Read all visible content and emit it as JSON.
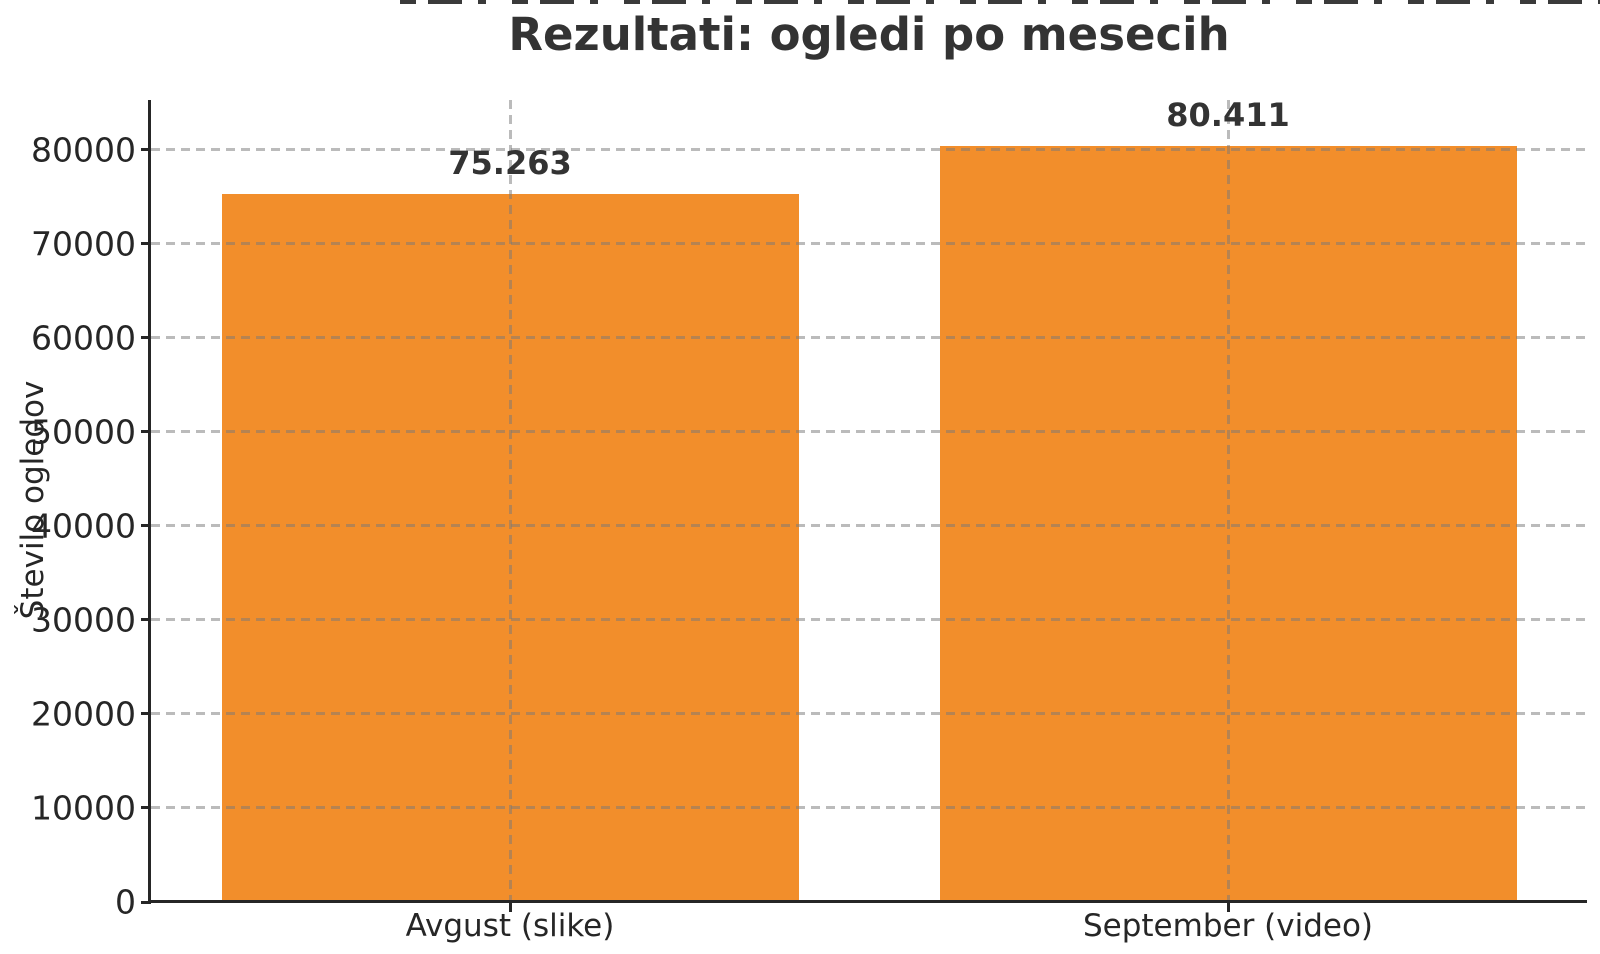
{
  "figure": {
    "title": "Rezultati: ogledi po mesecih"
  },
  "chart_data": {
    "type": "bar",
    "title": "Rezultati: ogledi po mesecih",
    "xlabel": "",
    "ylabel": "Število ogledov",
    "categories": [
      "Avgust (slike)",
      "September (video)"
    ],
    "values": [
      75263,
      80411
    ],
    "value_labels": [
      "75.263",
      "80.411"
    ],
    "yticks": [
      0,
      10000,
      20000,
      30000,
      40000,
      50000,
      60000,
      70000,
      80000
    ],
    "ylim": [
      0,
      85300
    ],
    "grid": {
      "style": "dashed",
      "horizontal": true,
      "vertical": true,
      "color": "#b0b0b0",
      "drawn_over_bars": true
    },
    "bar_color": "#f28e2b",
    "spine_color": "#262626",
    "text_color": "#333333",
    "legend_position": "none"
  }
}
